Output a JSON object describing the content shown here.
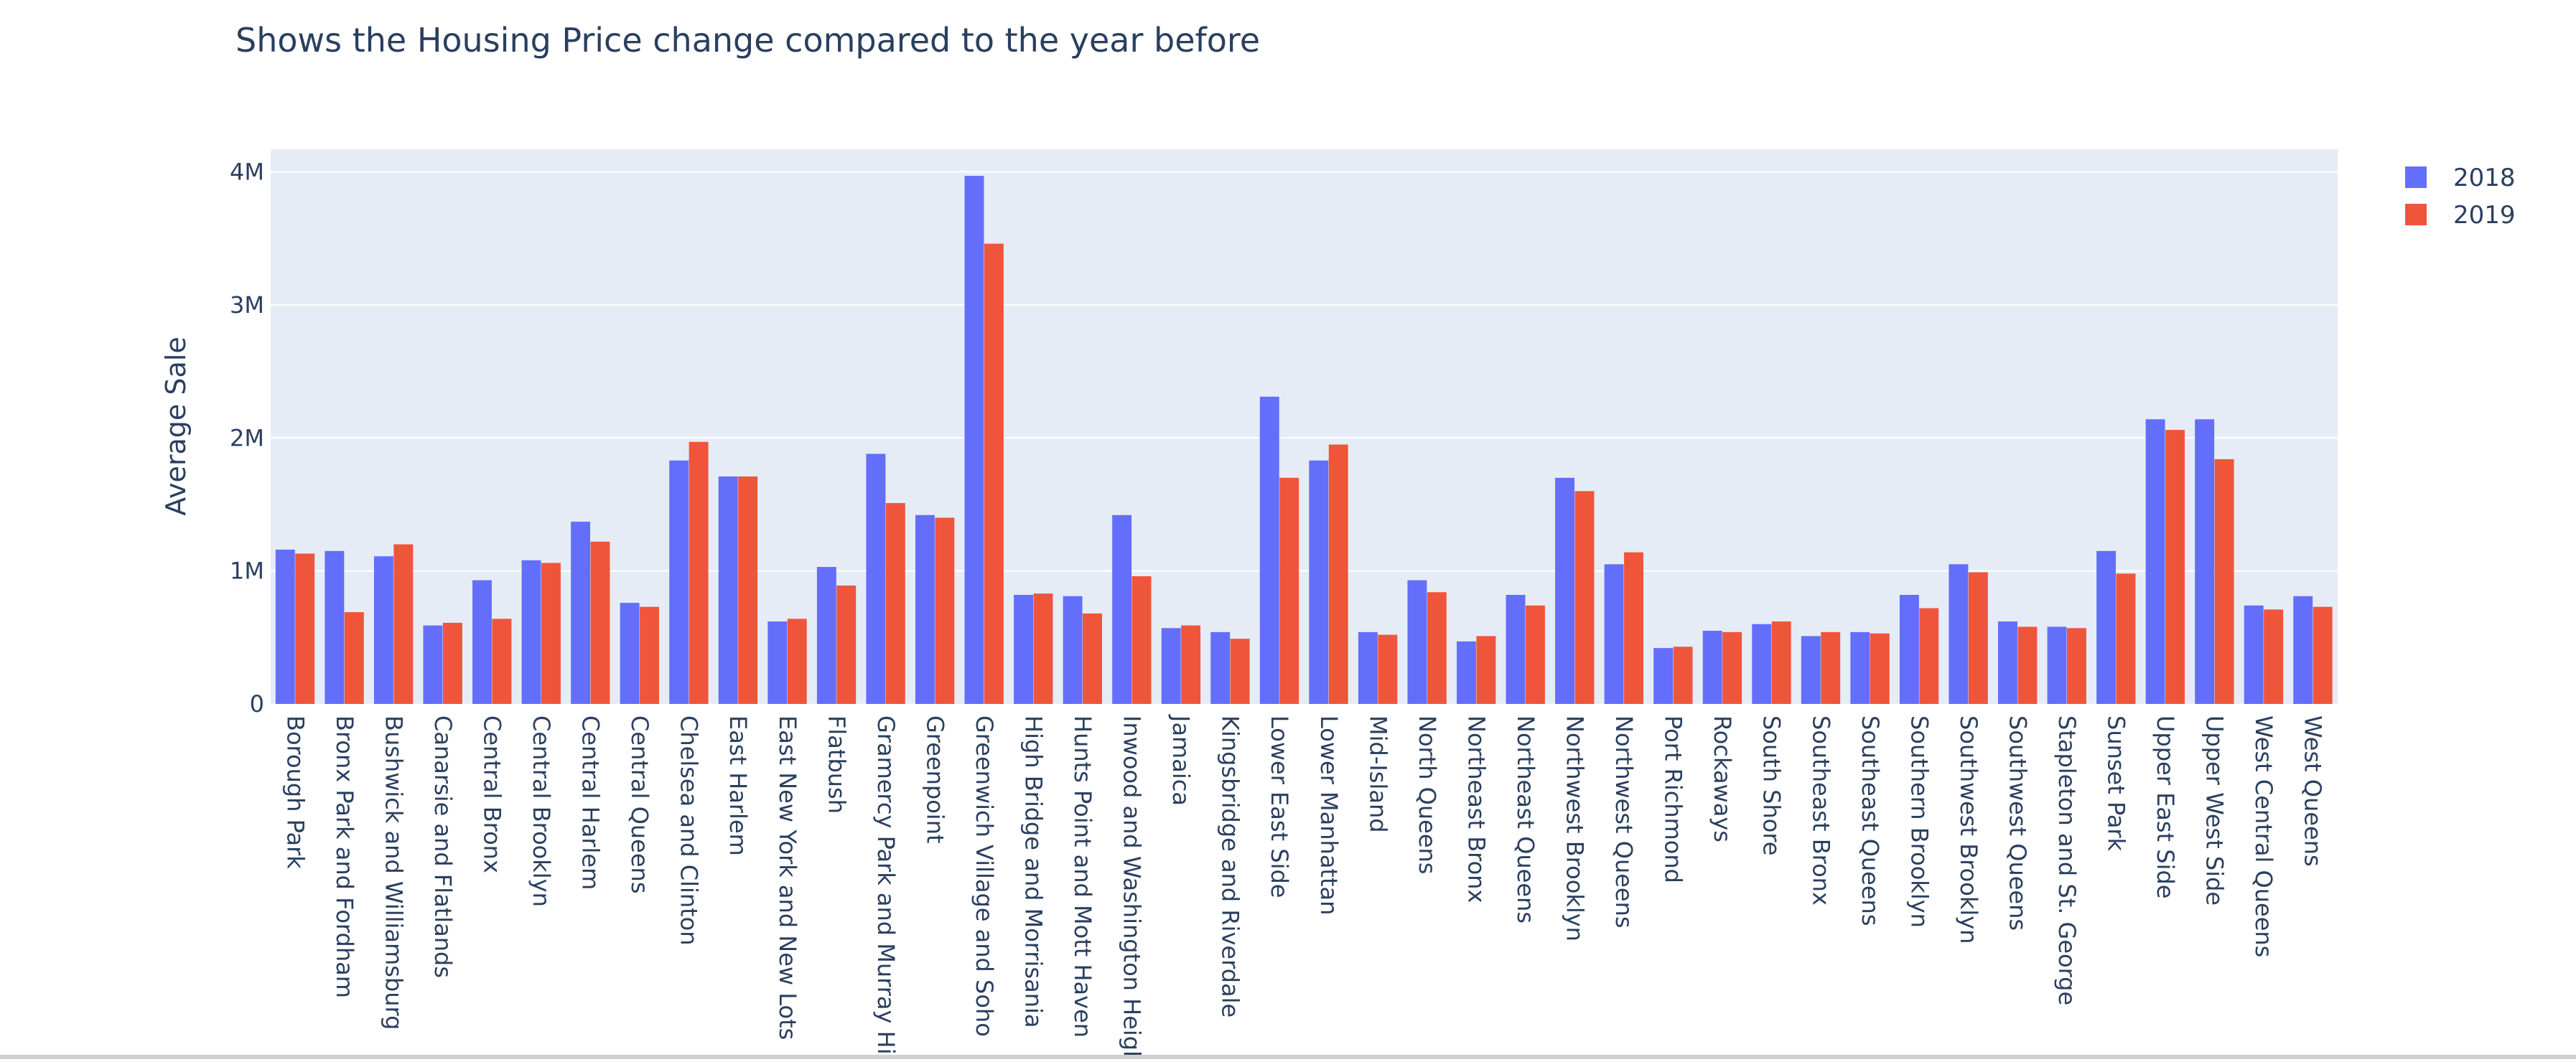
{
  "chart_data": {
    "type": "bar",
    "title": "Shows the Housing Price change compared to the year before",
    "xlabel": "",
    "ylabel": "Average Sale",
    "ylim": [
      0,
      4170000
    ],
    "yticks": [
      {
        "value": 0,
        "label": "0"
      },
      {
        "value": 1000000,
        "label": "1M"
      },
      {
        "value": 2000000,
        "label": "2M"
      },
      {
        "value": 3000000,
        "label": "3M"
      },
      {
        "value": 4000000,
        "label": "4M"
      }
    ],
    "grid": true,
    "legend_position": "top-right",
    "categories": [
      "Borough Park",
      "Bronx Park and Fordham",
      "Bushwick and Williamsburg",
      "Canarsie and Flatlands",
      "Central Bronx",
      "Central Brooklyn",
      "Central Harlem",
      "Central Queens",
      "Chelsea and Clinton",
      "East Harlem",
      "East New York and New Lots",
      "Flatbush",
      "Gramercy Park and Murray Hill",
      "Greenpoint",
      "Greenwich Village and Soho",
      "High Bridge and Morrisania",
      "Hunts Point and Mott Haven",
      "Inwood and Washington Heights",
      "Jamaica",
      "Kingsbridge and Riverdale",
      "Lower East Side",
      "Lower Manhattan",
      "Mid-Island",
      "North Queens",
      "Northeast Bronx",
      "Northeast Queens",
      "Northwest Brooklyn",
      "Northwest Queens",
      "Port Richmond",
      "Rockaways",
      "South Shore",
      "Southeast Bronx",
      "Southeast Queens",
      "Southern Brooklyn",
      "Southwest Brooklyn",
      "Southwest Queens",
      "Stapleton and St. George",
      "Sunset Park",
      "Upper East Side",
      "Upper West Side",
      "West Central Queens",
      "West Queens"
    ],
    "series": [
      {
        "name": "2018",
        "color": "#636efa",
        "values": [
          1160000,
          1150000,
          1110000,
          590000,
          930000,
          1080000,
          1370000,
          760000,
          1830000,
          1710000,
          620000,
          1030000,
          1880000,
          1420000,
          3970000,
          820000,
          810000,
          1420000,
          570000,
          540000,
          2310000,
          1830000,
          540000,
          930000,
          470000,
          820000,
          1700000,
          1050000,
          420000,
          550000,
          600000,
          510000,
          540000,
          820000,
          1050000,
          620000,
          580000,
          1150000,
          2140000,
          2140000,
          740000,
          810000
        ]
      },
      {
        "name": "2019",
        "color": "#ef553b",
        "values": [
          1130000,
          690000,
          1200000,
          610000,
          640000,
          1060000,
          1220000,
          730000,
          1970000,
          1710000,
          640000,
          890000,
          1510000,
          1400000,
          3460000,
          830000,
          680000,
          960000,
          590000,
          490000,
          1700000,
          1950000,
          520000,
          840000,
          510000,
          740000,
          1600000,
          1140000,
          430000,
          540000,
          620000,
          540000,
          530000,
          720000,
          990000,
          580000,
          570000,
          980000,
          2060000,
          1840000,
          710000,
          730000
        ]
      }
    ]
  }
}
